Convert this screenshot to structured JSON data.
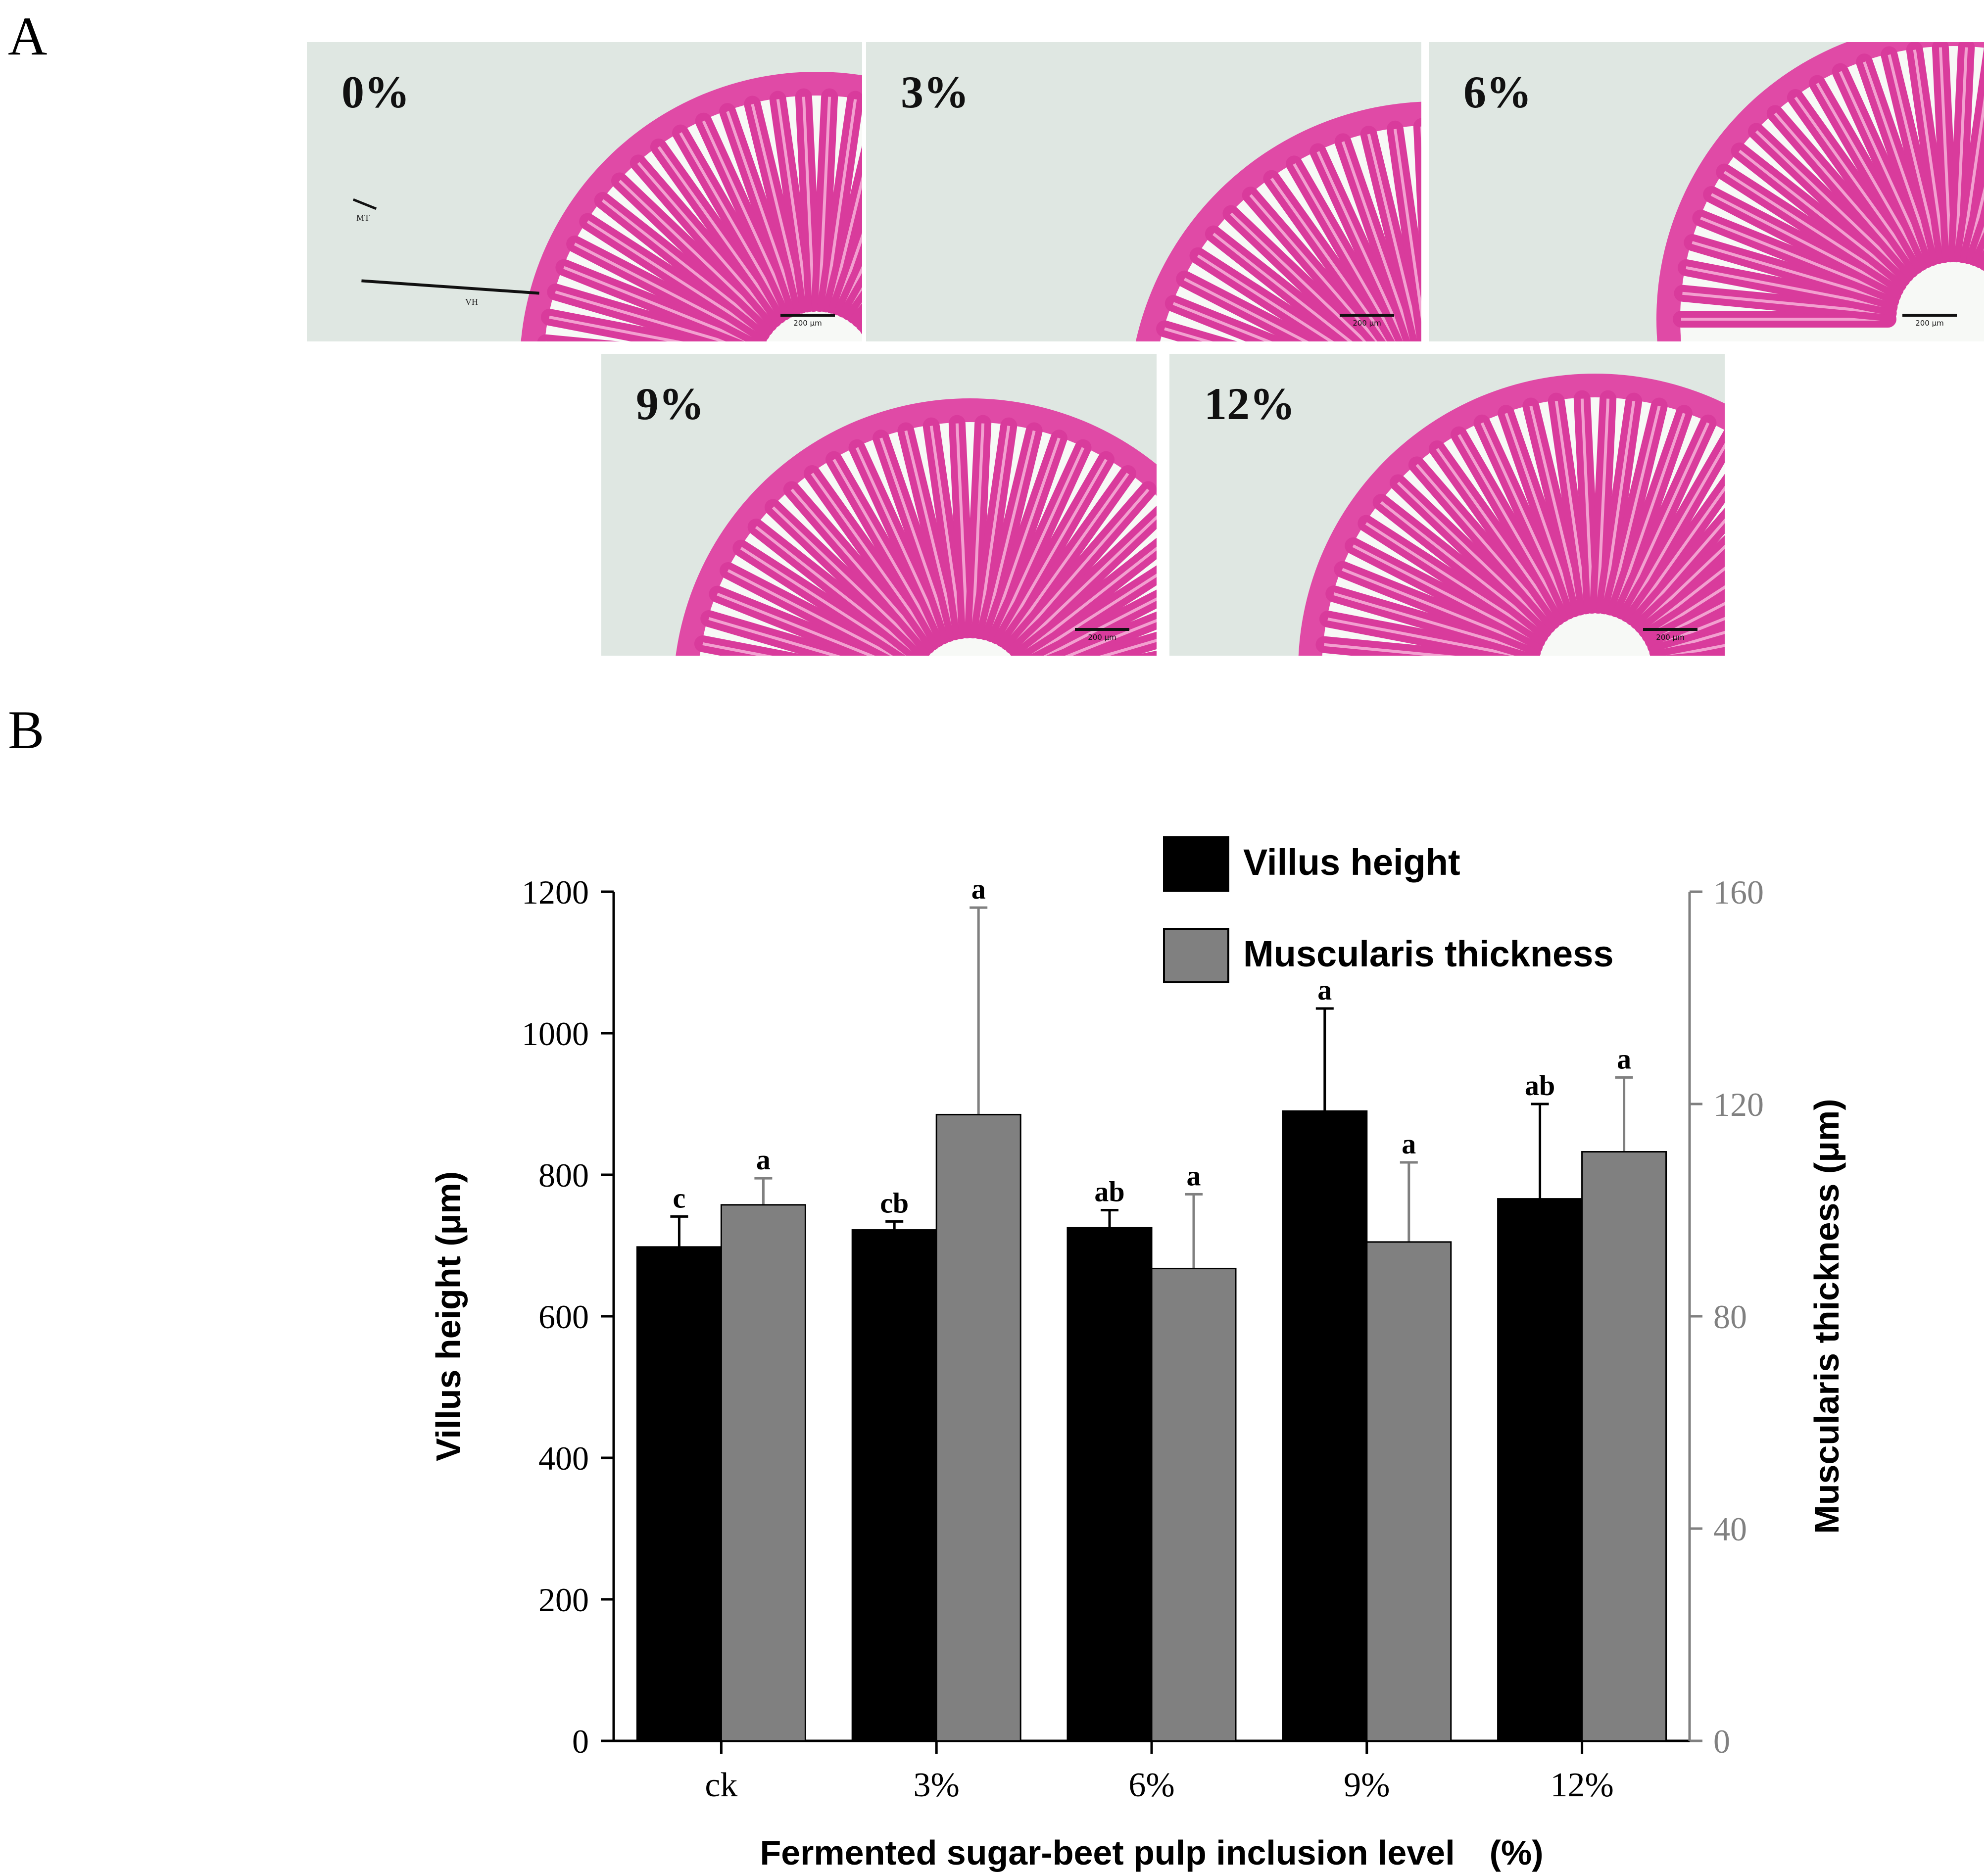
{
  "panel_a": {
    "letter": "A",
    "images": [
      {
        "label": "0%",
        "scale": "200 μm",
        "annotations": [
          "MT",
          "VH"
        ]
      },
      {
        "label": "3%",
        "scale": "200 μm",
        "annotations": []
      },
      {
        "label": "6%",
        "scale": "200 μm",
        "annotations": []
      },
      {
        "label": "9%",
        "scale": "200 μm",
        "annotations": []
      },
      {
        "label": "12%",
        "scale": "200 μm",
        "annotations": []
      }
    ]
  },
  "panel_b": {
    "letter": "B"
  },
  "chart_data": {
    "type": "bar",
    "categories": [
      "ck",
      "3%",
      "6%",
      "9%",
      "12%"
    ],
    "xlabel": "Fermented sugar-beet pulp inclusion level　(%)",
    "ylabel_left": "Villus height (μm)",
    "ylabel_right": "Muscularis thickness (μm)",
    "ylim_left": [
      0,
      1200
    ],
    "yticks_left": [
      0,
      200,
      400,
      600,
      800,
      1000,
      1200
    ],
    "ylim_right": [
      0,
      160
    ],
    "yticks_right": [
      0,
      40,
      80,
      120,
      160
    ],
    "legend_position": "top-right",
    "grid": false,
    "series": [
      {
        "name": "Villus height",
        "axis": "left",
        "color": "#000000",
        "values": [
          698,
          722,
          725,
          890,
          766
        ],
        "errors": [
          43,
          12,
          25,
          145,
          134
        ],
        "letters": [
          "c",
          "cb",
          "ab",
          "a",
          "ab"
        ]
      },
      {
        "name": "Muscularis thickness",
        "axis": "right",
        "color": "#808080",
        "values": [
          101,
          118,
          89,
          94,
          111
        ],
        "errors": [
          5,
          39,
          14,
          15,
          14
        ],
        "letters": [
          "a",
          "a",
          "a",
          "a",
          "a"
        ]
      }
    ]
  }
}
